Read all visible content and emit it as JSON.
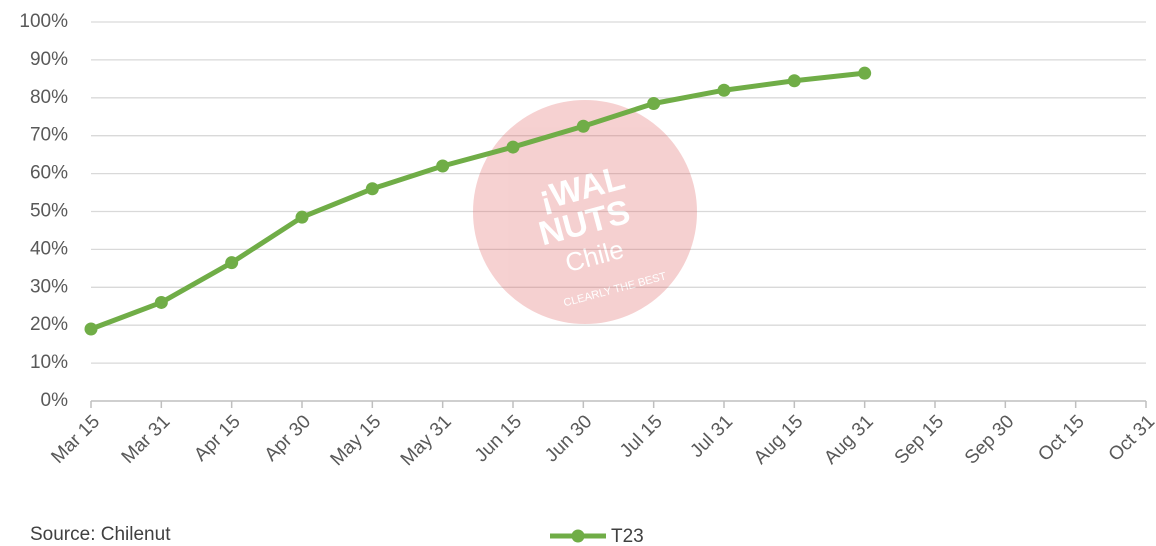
{
  "chart_data": {
    "type": "line",
    "categories": [
      "Mar 15",
      "Mar 31",
      "Apr 15",
      "Apr 30",
      "May 15",
      "May 31",
      "Jun 15",
      "Jun 30",
      "Jul 15",
      "Jul 31",
      "Aug 15",
      "Aug 31",
      "Sep 15",
      "Sep 30",
      "Oct 15",
      "Oct 31"
    ],
    "series": [
      {
        "name": "T23",
        "color": "#70ad47",
        "values": [
          19,
          26,
          36.5,
          48.5,
          56,
          62,
          67,
          72.5,
          78.5,
          82,
          84.5,
          86.5,
          null,
          null,
          null,
          null
        ]
      }
    ],
    "ylim": [
      0,
      100
    ],
    "yticks": [
      {
        "value": 0,
        "label": "0%"
      },
      {
        "value": 10,
        "label": "10%"
      },
      {
        "value": 20,
        "label": "20%"
      },
      {
        "value": 30,
        "label": "30%"
      },
      {
        "value": 40,
        "label": "40%"
      },
      {
        "value": 50,
        "label": "50%"
      },
      {
        "value": 60,
        "label": "60%"
      },
      {
        "value": 70,
        "label": "70%"
      },
      {
        "value": 80,
        "label": "80%"
      },
      {
        "value": 90,
        "label": "90%"
      },
      {
        "value": 100,
        "label": "100%"
      }
    ],
    "grid": true,
    "legend": "bottom",
    "source": "Source: Chilenut"
  },
  "watermark": {
    "line1": "¡WAL",
    "line2": "NUTS",
    "line3": "Chile",
    "tagline": "CLEARLY THE BEST"
  }
}
